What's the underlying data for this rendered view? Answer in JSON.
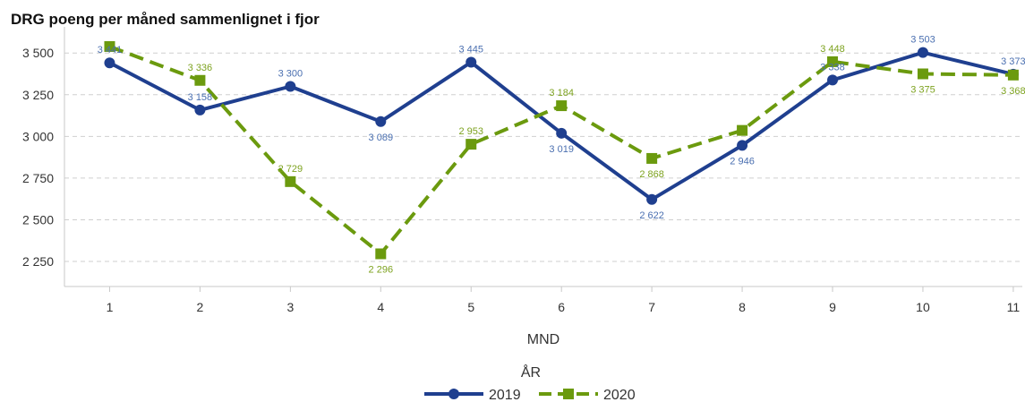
{
  "title": "DRG poeng per måned sammenlignet i fjor",
  "chart_data": {
    "type": "line",
    "title": "DRG poeng per måned sammenlignet i fjor",
    "xlabel": "MND",
    "ylabel": "",
    "x": [
      1,
      2,
      3,
      4,
      5,
      6,
      7,
      8,
      9,
      10,
      11
    ],
    "ylim": [
      2100,
      3630
    ],
    "yticks": [
      2250,
      2500,
      2750,
      3000,
      3250,
      3500
    ],
    "ytick_labels": [
      "2 250",
      "2 500",
      "2 750",
      "3 000",
      "3 250",
      "3 500"
    ],
    "grid": true,
    "legend_title": "ÅR",
    "legend_position": "bottom-center",
    "series": [
      {
        "name": "2019",
        "color": "#1f3f8f",
        "label_color": "#4a6fb0",
        "style": "solid",
        "marker": "circle",
        "values": [
          3441,
          3158,
          3300,
          3089,
          3445,
          3019,
          2622,
          2946,
          3338,
          3503,
          3373
        ],
        "labels": [
          "3 441",
          "3 158",
          "3 300",
          "3 089",
          "3 445",
          "3 019",
          "2 622",
          "2 946",
          "3 338",
          "3 503",
          "3 373"
        ]
      },
      {
        "name": "2020",
        "color": "#6b9a0e",
        "label_color": "#7da21f",
        "style": "dashed",
        "marker": "square",
        "values": [
          3539,
          3336,
          2729,
          2296,
          2953,
          3184,
          2868,
          3036,
          3448,
          3375,
          3368
        ],
        "labels": [
          "",
          "3 336",
          "2 729",
          "2 296",
          "2 953",
          "3 184",
          "2 868",
          "",
          "3 448",
          "3 375",
          "3 368"
        ]
      }
    ]
  }
}
